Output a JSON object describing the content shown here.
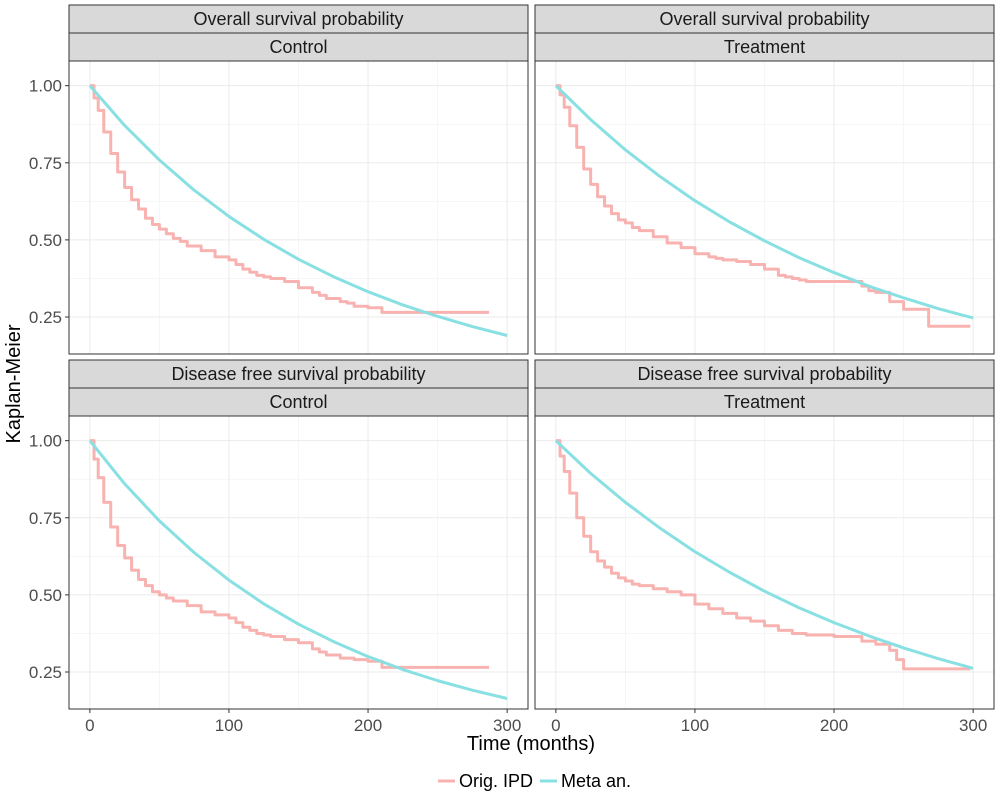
{
  "chart_data": {
    "type": "line",
    "xlabel": "Time (months)",
    "ylabel": "Kaplan-Meier",
    "xlim": [
      -15,
      315
    ],
    "ylim": [
      0.13,
      1.08
    ],
    "xticks": [
      0,
      100,
      200,
      300
    ],
    "xtick_labels": [
      "0",
      "100",
      "200",
      "300"
    ],
    "yticks": [
      0.25,
      0.5,
      0.75,
      1.0
    ],
    "ytick_labels": [
      "0.25",
      "0.50",
      "0.75",
      "1.00"
    ],
    "grid": true,
    "legend": {
      "position": "bottom",
      "entries": [
        {
          "name": "Orig. IPD",
          "color": "#f8b3b0"
        },
        {
          "name": "Meta an.",
          "color": "#88e0e3"
        }
      ]
    },
    "panels": [
      {
        "strip_top": "Overall survival probability",
        "strip_bottom": "Control",
        "series": [
          {
            "name": "Orig. IPD",
            "color": "#f8b3b0",
            "step": true,
            "x": [
              0,
              3,
              6,
              10,
              15,
              20,
              25,
              30,
              35,
              40,
              45,
              50,
              55,
              60,
              65,
              70,
              80,
              90,
              100,
              105,
              110,
              115,
              120,
              125,
              130,
              140,
              150,
              160,
              165,
              170,
              180,
              185,
              190,
              200,
              210,
              220,
              230,
              240,
              250,
              260,
              270,
              287
            ],
            "y": [
              1.0,
              0.96,
              0.92,
              0.85,
              0.78,
              0.72,
              0.67,
              0.63,
              0.6,
              0.57,
              0.55,
              0.535,
              0.52,
              0.505,
              0.495,
              0.48,
              0.465,
              0.445,
              0.435,
              0.42,
              0.405,
              0.395,
              0.385,
              0.38,
              0.375,
              0.365,
              0.345,
              0.33,
              0.32,
              0.31,
              0.3,
              0.295,
              0.285,
              0.28,
              0.265,
              0.265,
              0.265,
              0.265,
              0.265,
              0.265,
              0.265,
              0.265
            ]
          },
          {
            "name": "Meta an.",
            "color": "#88e0e3",
            "step": false,
            "x": [
              0,
              25,
              50,
              75,
              100,
              125,
              150,
              175,
              200,
              225,
              250,
              275,
              300
            ],
            "y": [
              1.0,
              0.871,
              0.759,
              0.661,
              0.576,
              0.502,
              0.437,
              0.381,
              0.332,
              0.289,
              0.252,
              0.219,
              0.19
            ]
          }
        ]
      },
      {
        "strip_top": "Overall survival probability",
        "strip_bottom": "Treatment",
        "series": [
          {
            "name": "Orig. IPD",
            "color": "#f8b3b0",
            "step": true,
            "x": [
              0,
              3,
              6,
              10,
              15,
              20,
              25,
              30,
              35,
              40,
              45,
              50,
              55,
              60,
              70,
              80,
              90,
              100,
              110,
              115,
              120,
              130,
              140,
              150,
              160,
              165,
              170,
              175,
              180,
              200,
              220,
              225,
              230,
              240,
              245,
              250,
              265,
              268,
              298
            ],
            "y": [
              1.0,
              0.97,
              0.93,
              0.87,
              0.8,
              0.73,
              0.68,
              0.64,
              0.61,
              0.585,
              0.565,
              0.555,
              0.54,
              0.53,
              0.51,
              0.49,
              0.475,
              0.455,
              0.445,
              0.44,
              0.435,
              0.43,
              0.42,
              0.405,
              0.385,
              0.38,
              0.375,
              0.37,
              0.365,
              0.365,
              0.35,
              0.335,
              0.33,
              0.3,
              0.3,
              0.275,
              0.275,
              0.22,
              0.22
            ]
          },
          {
            "name": "Meta an.",
            "color": "#88e0e3",
            "step": false,
            "x": [
              0,
              25,
              50,
              75,
              100,
              125,
              150,
              175,
              200,
              225,
              250,
              275,
              300
            ],
            "y": [
              1.0,
              0.89,
              0.792,
              0.705,
              0.627,
              0.558,
              0.497,
              0.442,
              0.394,
              0.35,
              0.312,
              0.277,
              0.247
            ]
          }
        ]
      },
      {
        "strip_top": "Disease free survival probability",
        "strip_bottom": "Control",
        "series": [
          {
            "name": "Orig. IPD",
            "color": "#f8b3b0",
            "step": true,
            "x": [
              0,
              3,
              6,
              10,
              15,
              20,
              25,
              30,
              35,
              40,
              45,
              50,
              55,
              60,
              70,
              80,
              90,
              100,
              105,
              110,
              115,
              120,
              125,
              130,
              140,
              150,
              160,
              165,
              170,
              180,
              190,
              200,
              210,
              220,
              287
            ],
            "y": [
              1.0,
              0.94,
              0.88,
              0.8,
              0.72,
              0.66,
              0.62,
              0.58,
              0.55,
              0.53,
              0.51,
              0.5,
              0.49,
              0.48,
              0.465,
              0.445,
              0.435,
              0.425,
              0.41,
              0.395,
              0.385,
              0.375,
              0.37,
              0.365,
              0.355,
              0.345,
              0.325,
              0.315,
              0.305,
              0.295,
              0.29,
              0.285,
              0.265,
              0.265,
              0.265
            ]
          },
          {
            "name": "Meta an.",
            "color": "#88e0e3",
            "step": false,
            "x": [
              0,
              25,
              50,
              75,
              100,
              125,
              150,
              175,
              200,
              225,
              250,
              275,
              300
            ],
            "y": [
              1.0,
              0.86,
              0.74,
              0.637,
              0.548,
              0.471,
              0.405,
              0.349,
              0.3,
              0.258,
              0.222,
              0.191,
              0.164
            ]
          }
        ]
      },
      {
        "strip_top": "Disease free survival probability",
        "strip_bottom": "Treatment",
        "series": [
          {
            "name": "Orig. IPD",
            "color": "#f8b3b0",
            "step": true,
            "x": [
              0,
              3,
              6,
              10,
              15,
              20,
              25,
              30,
              35,
              40,
              45,
              50,
              55,
              60,
              70,
              80,
              90,
              100,
              110,
              120,
              130,
              140,
              150,
              160,
              170,
              180,
              200,
              210,
              220,
              230,
              240,
              245,
              250,
              298
            ],
            "y": [
              1.0,
              0.95,
              0.9,
              0.83,
              0.75,
              0.69,
              0.64,
              0.61,
              0.59,
              0.57,
              0.555,
              0.545,
              0.535,
              0.53,
              0.52,
              0.51,
              0.5,
              0.47,
              0.455,
              0.44,
              0.425,
              0.415,
              0.4,
              0.385,
              0.375,
              0.37,
              0.365,
              0.365,
              0.35,
              0.34,
              0.32,
              0.29,
              0.26,
              0.26
            ]
          },
          {
            "name": "Meta an.",
            "color": "#88e0e3",
            "step": false,
            "x": [
              0,
              25,
              50,
              75,
              100,
              125,
              150,
              175,
              200,
              225,
              250,
              275,
              300
            ],
            "y": [
              1.0,
              0.894,
              0.8,
              0.716,
              0.64,
              0.573,
              0.512,
              0.458,
              0.41,
              0.367,
              0.328,
              0.293,
              0.262
            ]
          }
        ]
      }
    ]
  }
}
